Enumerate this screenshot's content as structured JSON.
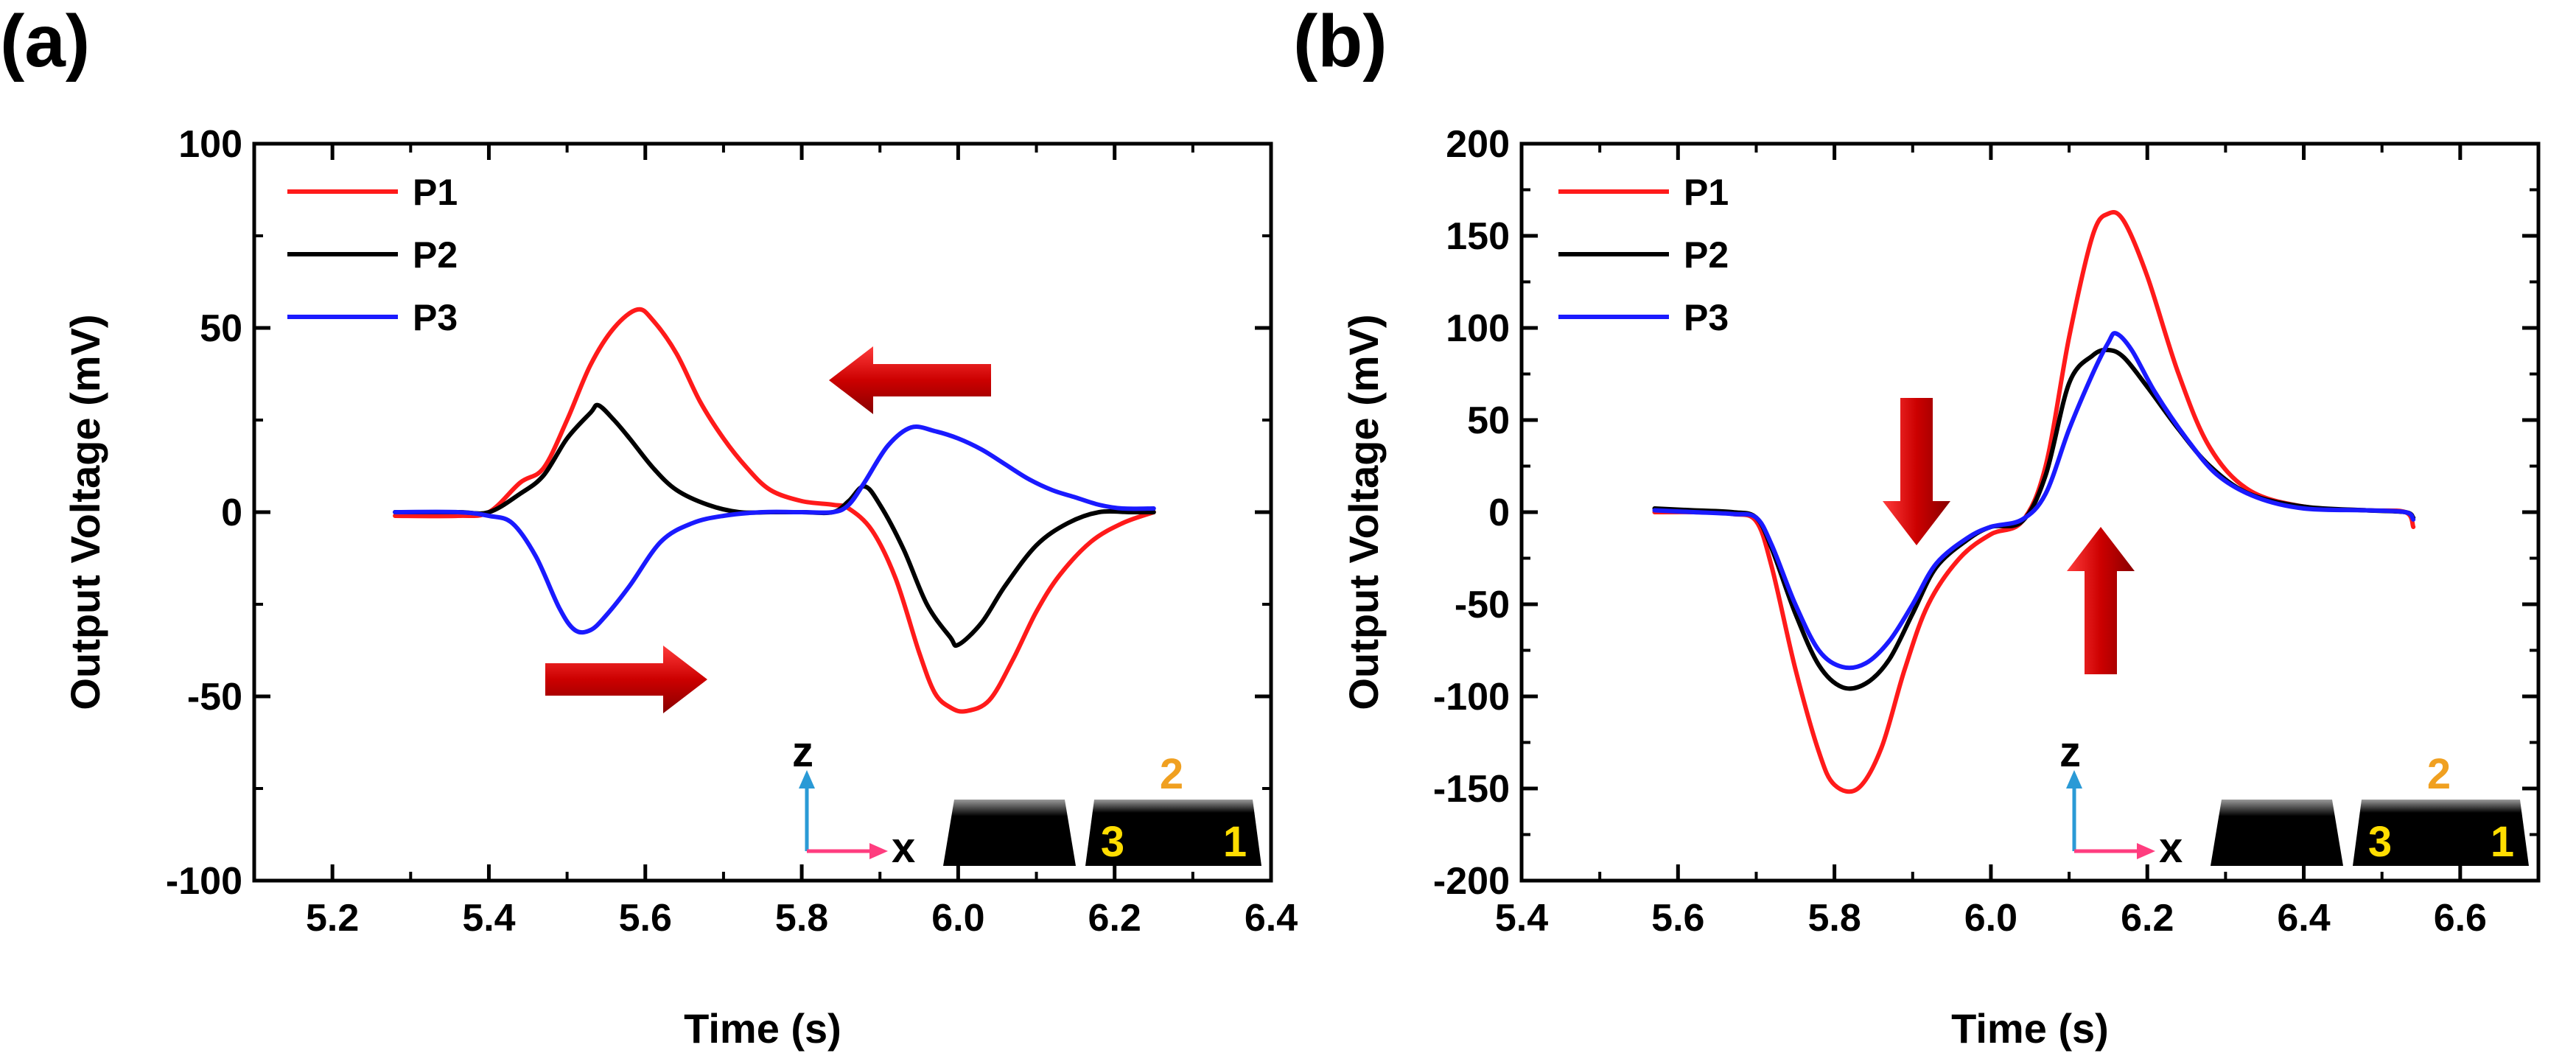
{
  "chart_data": [
    {
      "panel_label": "(a)",
      "type": "line",
      "xlabel": "Time (s)",
      "ylabel": "Output Voltage (mV)",
      "xlim": [
        5.1,
        6.4
      ],
      "ylim": [
        -100,
        100
      ],
      "xticks": [
        5.2,
        5.4,
        5.6,
        5.8,
        6.0,
        6.2,
        6.4
      ],
      "xtick_labels": [
        "5.2",
        "5.4",
        "5.6",
        "5.8",
        "6.0",
        "6.2",
        "6.4"
      ],
      "yticks": [
        -100,
        -50,
        0,
        50,
        100
      ],
      "ytick_labels": [
        "-100",
        "-50",
        "0",
        "50",
        "100"
      ],
      "legend": "top-left",
      "series": [
        {
          "name": "P1",
          "color": "#ff1a1a",
          "x": [
            5.28,
            5.36,
            5.4,
            5.44,
            5.47,
            5.5,
            5.53,
            5.56,
            5.59,
            5.61,
            5.64,
            5.67,
            5.7,
            5.73,
            5.76,
            5.8,
            5.84,
            5.86,
            5.89,
            5.92,
            5.95,
            5.97,
            5.99,
            6.01,
            6.04,
            6.07,
            6.1,
            6.13,
            6.17,
            6.21,
            6.25
          ],
          "y": [
            -1,
            -1,
            0,
            8,
            12,
            25,
            40,
            50,
            55,
            52,
            43,
            30,
            20,
            12,
            6,
            3,
            2,
            1,
            -5,
            -18,
            -38,
            -49,
            -53,
            -54,
            -51,
            -40,
            -27,
            -17,
            -8,
            -3,
            0
          ]
        },
        {
          "name": "P2",
          "color": "#000000",
          "x": [
            5.28,
            5.36,
            5.4,
            5.44,
            5.47,
            5.5,
            5.53,
            5.54,
            5.56,
            5.58,
            5.61,
            5.64,
            5.68,
            5.72,
            5.76,
            5.8,
            5.84,
            5.86,
            5.88,
            5.9,
            5.93,
            5.96,
            5.99,
            6.0,
            6.03,
            6.06,
            6.1,
            6.14,
            6.18,
            6.22,
            6.25
          ],
          "y": [
            0,
            0,
            0,
            5,
            10,
            20,
            27,
            29,
            25,
            20,
            12,
            6,
            2,
            0,
            0,
            0,
            0,
            3,
            7,
            2,
            -10,
            -25,
            -34,
            -36,
            -30,
            -20,
            -9,
            -3,
            0,
            0,
            0
          ]
        },
        {
          "name": "P3",
          "color": "#1a1aff",
          "x": [
            5.28,
            5.36,
            5.4,
            5.43,
            5.46,
            5.49,
            5.51,
            5.53,
            5.55,
            5.58,
            5.62,
            5.66,
            5.7,
            5.75,
            5.8,
            5.84,
            5.86,
            5.88,
            5.91,
            5.94,
            5.97,
            6.0,
            6.03,
            6.06,
            6.09,
            6.12,
            6.15,
            6.18,
            6.21,
            6.25
          ],
          "y": [
            0,
            0,
            -1,
            -3,
            -12,
            -26,
            -32,
            -32,
            -28,
            -20,
            -8,
            -3,
            -1,
            0,
            0,
            0,
            2,
            8,
            18,
            23,
            22,
            20,
            17,
            13,
            9,
            6,
            4,
            2,
            1,
            1
          ]
        }
      ],
      "annotations": {
        "arrow_right": "→",
        "arrow_left": "←",
        "axis_z": "z",
        "axis_x": "x",
        "sensor_label_top": "2",
        "sensor_label_left": "3",
        "sensor_label_right": "1"
      }
    },
    {
      "panel_label": "(b)",
      "type": "line",
      "xlabel": "Time (s)",
      "ylabel": "Output Voltage (mV)",
      "xlim": [
        5.4,
        6.7
      ],
      "ylim": [
        -200,
        200
      ],
      "xticks": [
        5.4,
        5.6,
        5.8,
        6.0,
        6.2,
        6.4,
        6.6
      ],
      "xtick_labels": [
        "5.4",
        "5.6",
        "5.8",
        "6.0",
        "6.2",
        "6.4",
        "6.6"
      ],
      "yticks": [
        -200,
        -150,
        -100,
        -50,
        0,
        50,
        100,
        150,
        200
      ],
      "ytick_labels": [
        "-200",
        "-150",
        "-100",
        "-50",
        "0",
        "50",
        "100",
        "150",
        "200"
      ],
      "legend": "top-left",
      "series": [
        {
          "name": "P1",
          "color": "#ff1a1a",
          "x": [
            5.57,
            5.62,
            5.67,
            5.7,
            5.72,
            5.75,
            5.78,
            5.8,
            5.83,
            5.86,
            5.89,
            5.92,
            5.96,
            6.0,
            6.04,
            6.07,
            6.1,
            6.13,
            6.15,
            6.17,
            6.2,
            6.24,
            6.28,
            6.33,
            6.4,
            6.48,
            6.53,
            6.54
          ],
          "y": [
            0,
            0,
            -1,
            -5,
            -30,
            -85,
            -130,
            -148,
            -150,
            -128,
            -85,
            -50,
            -25,
            -12,
            -5,
            25,
            95,
            150,
            162,
            158,
            128,
            75,
            35,
            12,
            3,
            1,
            0,
            -8
          ]
        },
        {
          "name": "P2",
          "color": "#000000",
          "x": [
            5.57,
            5.62,
            5.67,
            5.7,
            5.72,
            5.75,
            5.78,
            5.81,
            5.84,
            5.87,
            5.9,
            5.93,
            5.97,
            6.0,
            6.04,
            6.07,
            6.1,
            6.13,
            6.15,
            6.17,
            6.2,
            6.24,
            6.28,
            6.33,
            6.4,
            6.48,
            6.53,
            6.54
          ],
          "y": [
            2,
            1,
            0,
            -3,
            -20,
            -55,
            -83,
            -95,
            -93,
            -80,
            -55,
            -30,
            -15,
            -8,
            -5,
            20,
            70,
            85,
            88,
            84,
            68,
            45,
            25,
            10,
            3,
            1,
            0,
            -3
          ]
        },
        {
          "name": "P3",
          "color": "#1a1aff",
          "x": [
            5.57,
            5.62,
            5.67,
            5.7,
            5.72,
            5.75,
            5.78,
            5.81,
            5.84,
            5.87,
            5.9,
            5.93,
            5.97,
            6.0,
            6.04,
            6.07,
            6.1,
            6.13,
            6.15,
            6.16,
            6.18,
            6.21,
            6.25,
            6.29,
            6.34,
            6.4,
            6.48,
            6.53,
            6.54
          ],
          "y": [
            1,
            0,
            -1,
            -3,
            -18,
            -50,
            -75,
            -84,
            -82,
            -70,
            -50,
            -28,
            -14,
            -8,
            -4,
            10,
            45,
            75,
            92,
            97,
            88,
            65,
            40,
            20,
            8,
            2,
            1,
            0,
            -4
          ]
        }
      ],
      "annotations": {
        "arrow_down": "↓",
        "arrow_up": "↑",
        "axis_z": "z",
        "axis_x": "x",
        "sensor_label_top": "2",
        "sensor_label_left": "3",
        "sensor_label_right": "1"
      }
    }
  ]
}
